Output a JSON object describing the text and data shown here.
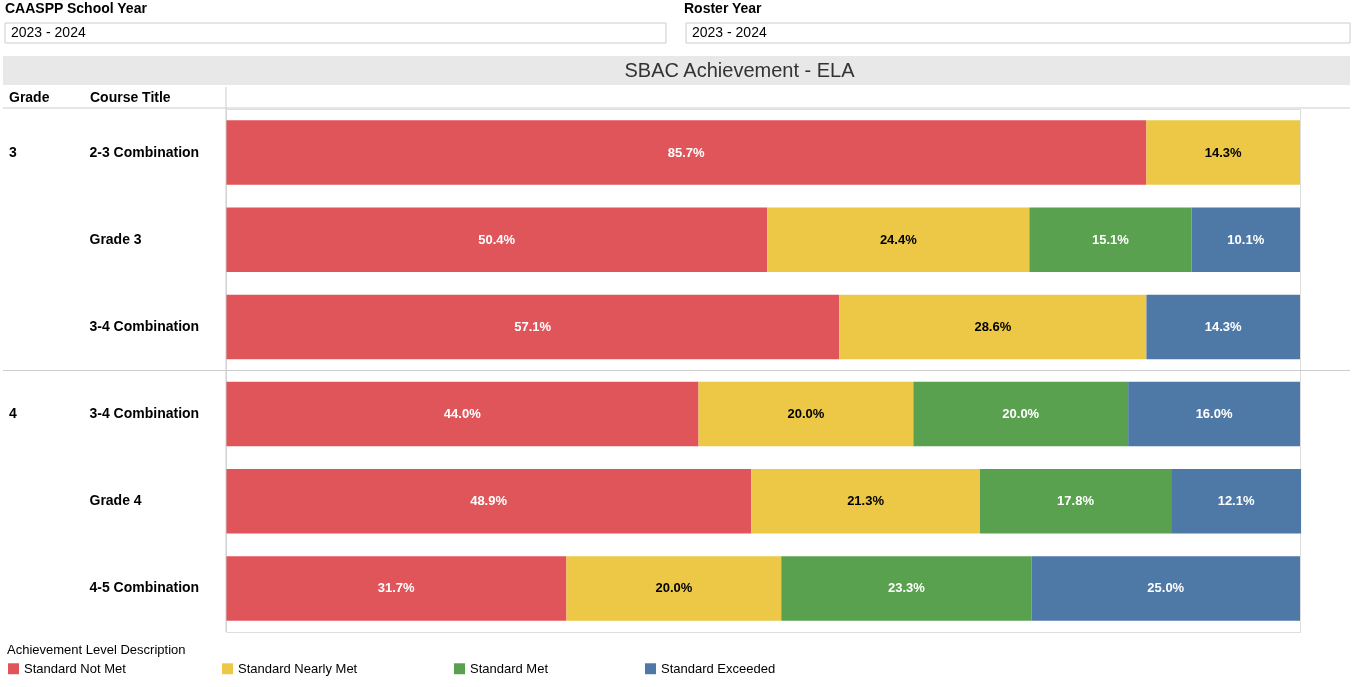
{
  "chart_data": {
    "type": "bar",
    "orientation": "horizontal",
    "stacked": true,
    "title": "SBAC Achievement - ELA",
    "legend_title": "Achievement Level Description",
    "legend": "bottom left",
    "tick_labels": "y",
    "grid": false,
    "xlim": [
      0,
      100
    ],
    "categories": [
      "2-3 Combination",
      "Grade 3",
      "3-4 Combination",
      "3-4 Combination",
      "Grade 4",
      "4-5 Combination"
    ],
    "series": [
      {
        "name": "Standard Not Met",
        "color": "#e0555a",
        "values": [
          85.7,
          50.4,
          57.1,
          44.0,
          48.9,
          31.7
        ],
        "value_labels": [
          "85.7%",
          "50.4%",
          "57.1%",
          "44.0%",
          "48.9%",
          "31.7%"
        ]
      },
      {
        "name": "Standard Nearly Met",
        "color": "#ecc846",
        "values": [
          14.3,
          24.4,
          28.6,
          20.0,
          21.3,
          20.0
        ],
        "value_labels": [
          "14.3%",
          "24.4%",
          "28.6%",
          "20.0%",
          "21.3%",
          "20.0%"
        ]
      },
      {
        "name": "Standard Met",
        "color": "#59a14f",
        "values": [
          0,
          15.1,
          0,
          20.0,
          17.8,
          23.3
        ],
        "value_labels": [
          null,
          "15.1%",
          null,
          "20.0%",
          "17.8%",
          "23.3%"
        ]
      },
      {
        "name": "Standard Exceeded",
        "color": "#4e79a7",
        "values": [
          0,
          10.1,
          14.3,
          16.0,
          12.1,
          25.0
        ],
        "value_labels": [
          null,
          "10.1%",
          "14.3%",
          "16.0%",
          "12.1%",
          "25.0%"
        ]
      }
    ],
    "annotations": [
      "CAASPP School Year",
      "2023 - 2024",
      "Roster Year",
      "2023 - 2024",
      "Grade",
      "Course Title",
      "3",
      "4"
    ]
  }
}
